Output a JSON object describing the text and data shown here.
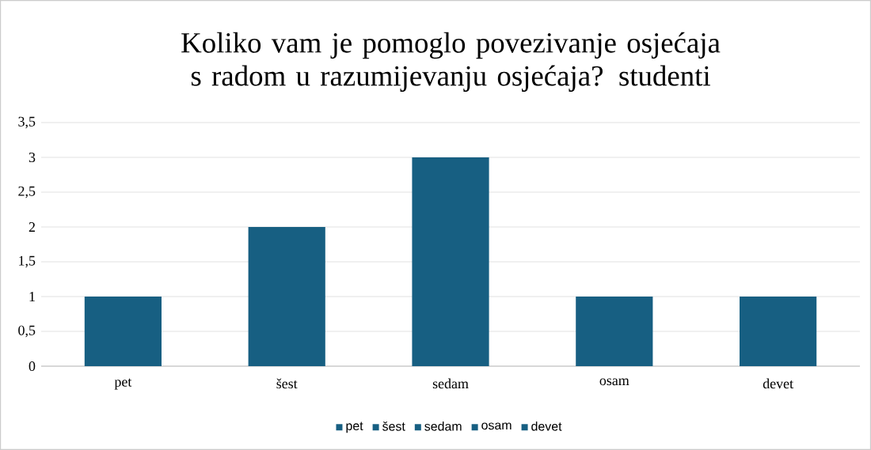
{
  "chart_data": {
    "type": "bar",
    "title": "Koliko vam je pomoglo povezivanje osjećaja s radom u razumijevanju osjećaja? studenti",
    "categories": [
      "pet",
      "šest",
      "sedam",
      "osam",
      "devet"
    ],
    "series": [
      {
        "name": "pet",
        "color": "#175f82",
        "values": [
          1,
          null,
          null,
          null,
          null
        ]
      },
      {
        "name": "šest",
        "color": "#175f82",
        "values": [
          null,
          2,
          null,
          null,
          null
        ]
      },
      {
        "name": "sedam",
        "color": "#175f82",
        "values": [
          null,
          null,
          3,
          null,
          null
        ]
      },
      {
        "name": "osam",
        "color": "#175f82",
        "values": [
          null,
          null,
          null,
          1,
          null
        ]
      },
      {
        "name": "devet",
        "color": "#175f82",
        "values": [
          null,
          null,
          null,
          null,
          1
        ]
      }
    ],
    "stacked": true,
    "ylim": [
      0,
      3.5
    ],
    "yticks": [
      0,
      {
        "value": 0.5,
        "label": "0,5"
      },
      1,
      {
        "value": 1.5,
        "label": "1,5"
      },
      2,
      {
        "value": 2.5,
        "label": "2,5"
      },
      3,
      {
        "value": 3.5,
        "label": "3,5"
      }
    ],
    "grid": "y",
    "legend": "bottom"
  }
}
